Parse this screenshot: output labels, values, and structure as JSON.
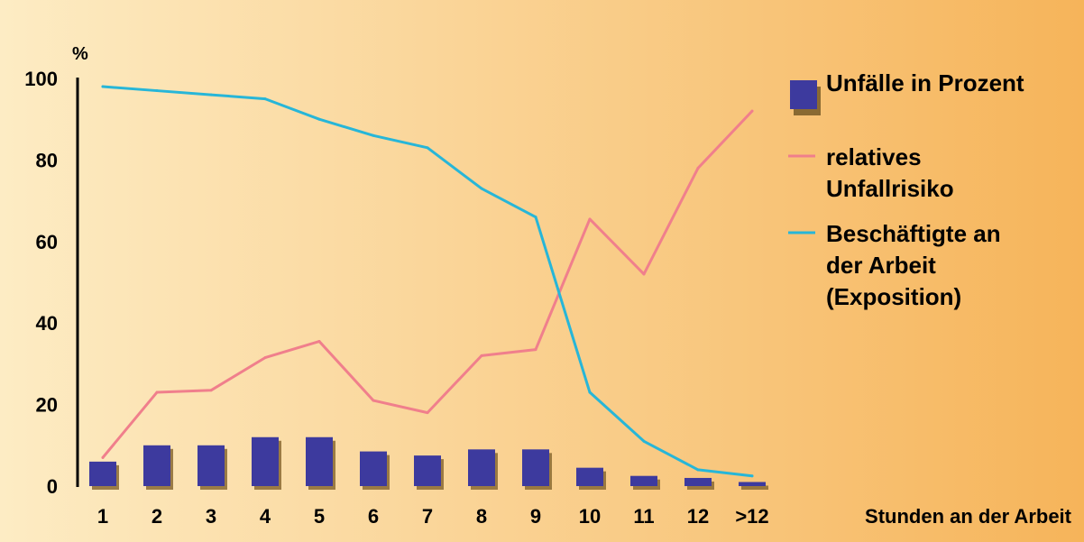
{
  "chart_data": {
    "type": "bar+line",
    "y_unit": "%",
    "xlabel": "Stunden an der Arbeit",
    "ylim": [
      0,
      100
    ],
    "y_ticks": [
      0,
      20,
      40,
      60,
      80,
      100
    ],
    "categories": [
      "1",
      "2",
      "3",
      "4",
      "5",
      "6",
      "7",
      "8",
      "9",
      "10",
      "11",
      "12",
      ">12"
    ],
    "series": [
      {
        "name": "Unfälle in Prozent",
        "kind": "bar",
        "color": "#3d3a9e",
        "values": [
          6,
          10,
          10,
          12,
          12,
          8.5,
          7.5,
          9,
          9,
          4.5,
          2.5,
          2,
          1
        ]
      },
      {
        "name": "relatives Unfallrisiko",
        "kind": "line",
        "color": "#f07f8c",
        "values": [
          7,
          23,
          23.5,
          31.5,
          35.5,
          21,
          18,
          32,
          33.5,
          65.5,
          52,
          78,
          92
        ]
      },
      {
        "name": "Beschäftigte an der Arbeit (Exposition)",
        "kind": "line",
        "color": "#27b6d8",
        "values": [
          98,
          97,
          96,
          95,
          90,
          86,
          83,
          73,
          66,
          23,
          11,
          4,
          2.5
        ]
      }
    ],
    "legend": {
      "position": "right",
      "entries": [
        {
          "lines": [
            "Unfälle in Prozent"
          ]
        },
        {
          "lines": [
            "relatives",
            "Unfallrisiko"
          ]
        },
        {
          "lines": [
            "Beschäftigte an",
            "der Arbeit",
            "(Exposition)"
          ]
        }
      ]
    },
    "background": {
      "from": "#fdecc4",
      "to": "#f6b45a"
    },
    "grid": false
  }
}
